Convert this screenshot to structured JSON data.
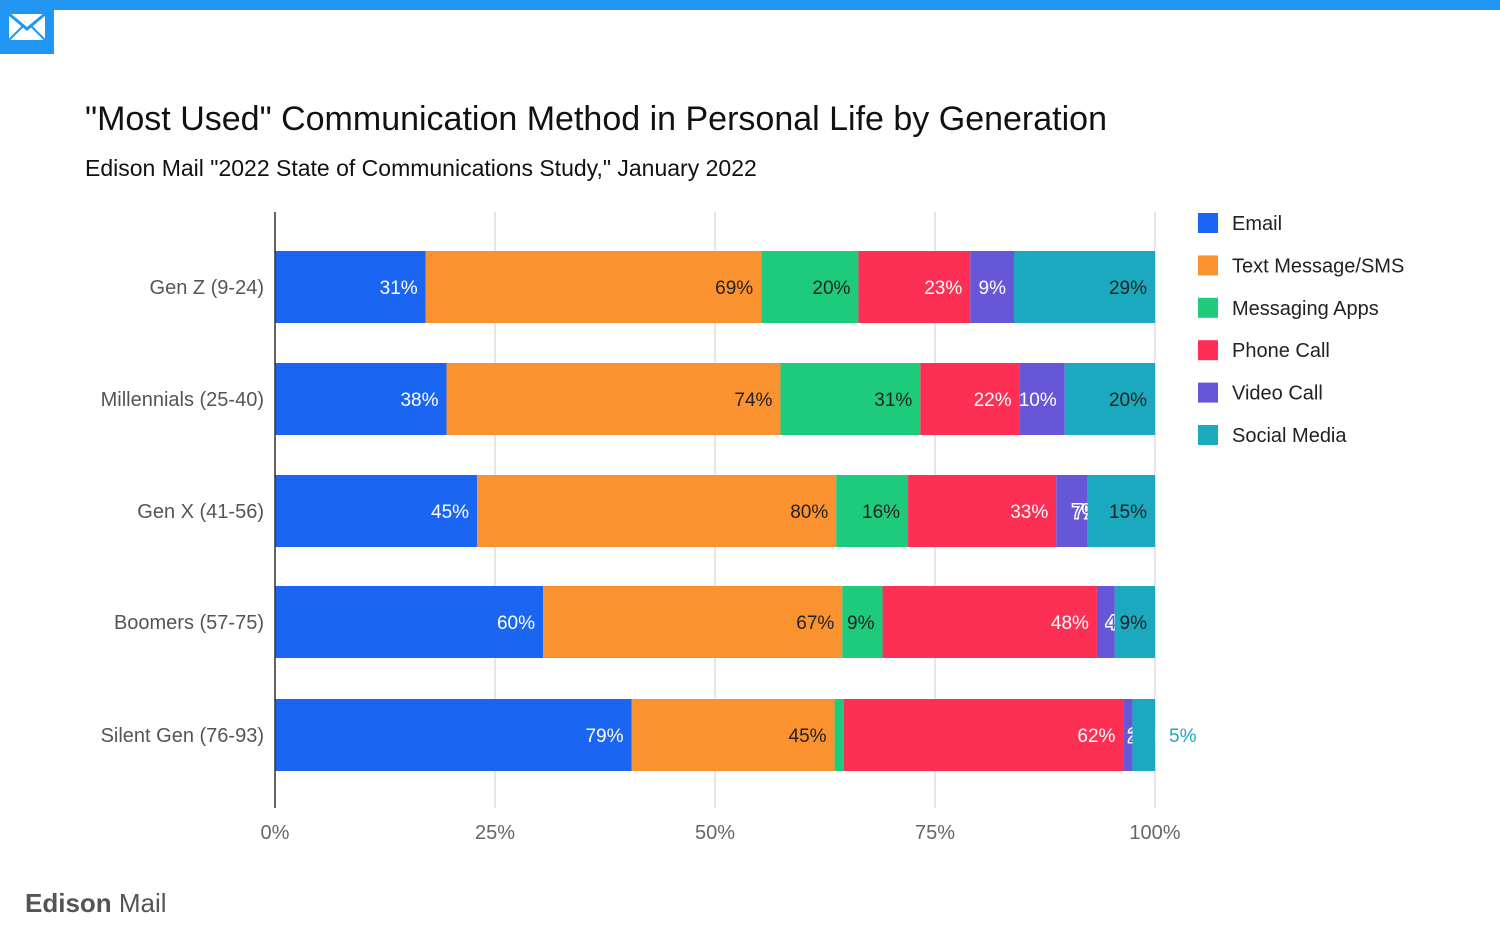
{
  "header": {
    "icon": "mail-envelope-icon",
    "accent_color": "#2196f3"
  },
  "brand": {
    "part1": "Edison",
    "part2": " Mail"
  },
  "chart_data": {
    "type": "bar",
    "orientation": "horizontal",
    "stacked": true,
    "normalized": true,
    "title": "\"Most Used\" Communication Method in Personal Life by Generation",
    "subtitle": "Edison Mail \"2022 State of Communications Study,\" January 2022",
    "categories": [
      "Gen Z (9-24)",
      "Millennials (25-40)",
      "Gen X (41-56)",
      "Boomers (57-75)",
      "Silent Gen (76-93)"
    ],
    "x_ticks": [
      "0%",
      "25%",
      "50%",
      "75%",
      "100%"
    ],
    "xlim": [
      0,
      100
    ],
    "grid": true,
    "legend_position": "right",
    "series": [
      {
        "name": "Email",
        "color": "#1a66f2",
        "values": [
          31,
          38,
          45,
          60,
          79
        ]
      },
      {
        "name": "Text Message/SMS",
        "color": "#fb9230",
        "values": [
          69,
          74,
          80,
          67,
          45
        ]
      },
      {
        "name": "Messaging Apps",
        "color": "#1ecb7c",
        "values": [
          20,
          31,
          16,
          9,
          2
        ]
      },
      {
        "name": "Phone Call",
        "color": "#fe2f55",
        "values": [
          23,
          22,
          33,
          48,
          62
        ]
      },
      {
        "name": "Video Call",
        "color": "#6557d8",
        "values": [
          9,
          10,
          7,
          4,
          2
        ]
      },
      {
        "name": "Social Media",
        "color": "#1aa9be",
        "values": [
          29,
          20,
          15,
          9,
          5
        ]
      }
    ],
    "data_labels": [
      [
        "31%",
        "69%",
        "20%",
        "23%",
        "9%",
        "29%"
      ],
      [
        "38%",
        "74%",
        "31%",
        "22%",
        "10%",
        "20%"
      ],
      [
        "45%",
        "80%",
        "16%",
        "33%",
        "7%",
        "15%"
      ],
      [
        "60%",
        "67%",
        "9%",
        "48%",
        "4%",
        "9%"
      ],
      [
        "79%",
        "45%",
        "2%",
        "62%",
        "2%",
        "5%"
      ]
    ]
  }
}
